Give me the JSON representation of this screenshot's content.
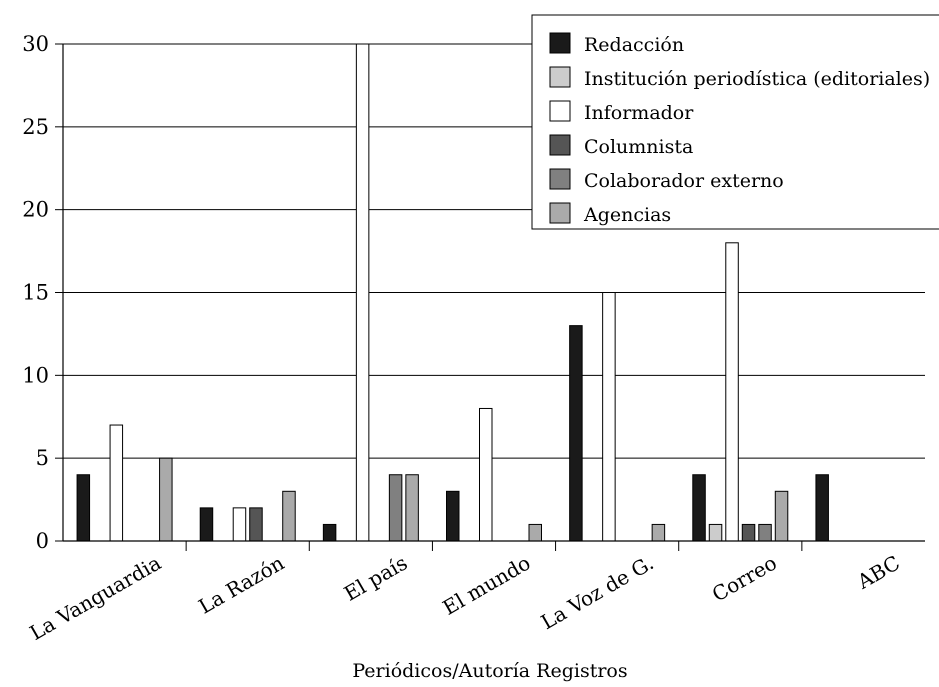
{
  "chart_data": {
    "type": "bar",
    "title": "",
    "xlabel": "Periódicos/Autoría Registros",
    "ylabel": "",
    "ylim": [
      0,
      30
    ],
    "yticks": [
      0,
      5,
      10,
      15,
      20,
      25,
      30
    ],
    "grid": true,
    "legend_position": "top-right",
    "categories": [
      "La Vanguardia",
      "La Razón",
      "El país",
      "El mundo",
      "La Voz de G.",
      "Correo",
      "ABC"
    ],
    "series": [
      {
        "name": "Redacción",
        "color": "#1a1a1a",
        "values": [
          4,
          2,
          1,
          3,
          13,
          4,
          4
        ]
      },
      {
        "name": "Institución periodística (editoriales)",
        "color": "#cccccc",
        "values": [
          0,
          0,
          0,
          0,
          0,
          1,
          0
        ]
      },
      {
        "name": "Informador",
        "color": "#ffffff",
        "values": [
          7,
          2,
          30,
          8,
          15,
          18,
          0
        ]
      },
      {
        "name": "Columnista",
        "color": "#555555",
        "values": [
          0,
          2,
          0,
          0,
          0,
          1,
          0
        ]
      },
      {
        "name": "Colaborador externo",
        "color": "#808080",
        "values": [
          0,
          0,
          4,
          0,
          0,
          1,
          0
        ]
      },
      {
        "name": "Agencias",
        "color": "#aaaaaa",
        "values": [
          5,
          3,
          4,
          1,
          1,
          3,
          0
        ]
      }
    ]
  }
}
